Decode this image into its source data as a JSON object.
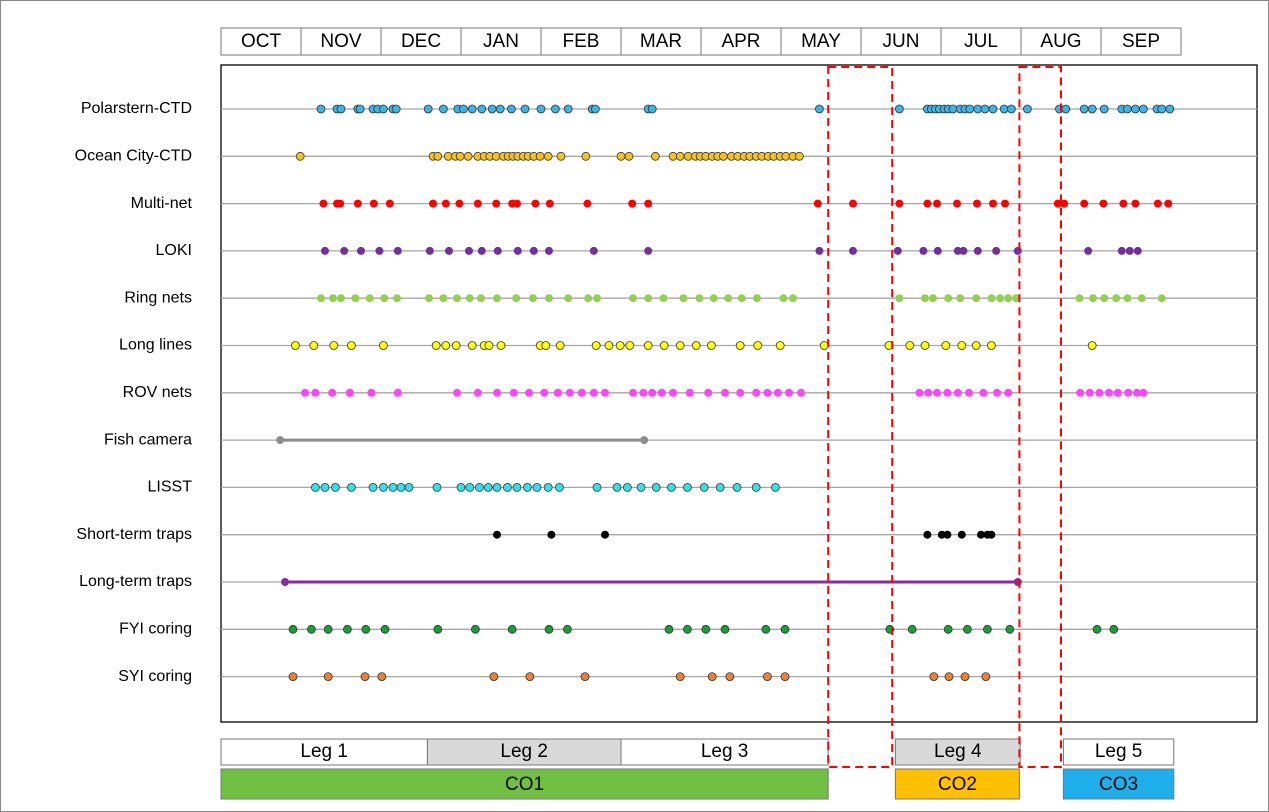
{
  "chart_data": {
    "type": "timeline",
    "months": [
      "OCT",
      "NOV",
      "DEC",
      "JAN",
      "FEB",
      "MAR",
      "APR",
      "MAY",
      "JUN",
      "JUL",
      "AUG",
      "SEP"
    ],
    "xlim": [
      0,
      12.95
    ],
    "rows": [
      {
        "name": "Polarstern-CTD",
        "color": "#3ab3e6",
        "x": [
          1.25,
          1.45,
          1.5,
          1.71,
          1.74,
          1.9,
          1.96,
          2.03,
          2.15,
          2.19,
          2.59,
          2.78,
          2.96,
          3.03,
          3.14,
          3.26,
          3.39,
          3.49,
          3.63,
          3.8,
          4,
          4.18,
          4.34,
          4.64,
          4.68,
          5.34,
          5.39,
          7.48,
          8.48,
          8.83,
          8.88,
          8.93,
          8.98,
          9.04,
          9.09,
          9.15,
          9.24,
          9.3,
          9.36,
          9.46,
          9.55,
          9.65,
          9.79,
          9.88,
          10.08,
          10.48,
          10.56,
          10.79,
          10.89,
          11.04,
          11.26,
          11.33,
          11.43,
          11.53,
          11.7,
          11.76,
          11.86
        ]
      },
      {
        "name": "Ocean City-CTD",
        "color": "#f5c21b",
        "x": [
          0.99,
          2.65,
          2.71,
          2.84,
          2.93,
          2.99,
          3.09,
          3.21,
          3.29,
          3.36,
          3.44,
          3.53,
          3.59,
          3.65,
          3.71,
          3.78,
          3.84,
          3.91,
          3.99,
          4.09,
          4.25,
          4.56,
          5,
          5.1,
          5.43,
          5.65,
          5.74,
          5.84,
          5.93,
          5.99,
          6.06,
          6.14,
          6.21,
          6.28,
          6.38,
          6.46,
          6.54,
          6.61,
          6.69,
          6.76,
          6.84,
          6.91,
          6.99,
          7.06,
          7.15,
          7.23
        ]
      },
      {
        "name": "Multi-net",
        "color": "#ff0000",
        "x": [
          1.28,
          1.45,
          1.49,
          1.71,
          1.91,
          2.11,
          2.65,
          2.81,
          2.98,
          3.21,
          3.44,
          3.64,
          3.7,
          3.93,
          4.11,
          4.58,
          5.14,
          5.34,
          7.46,
          7.9,
          8.48,
          8.83,
          8.95,
          9.2,
          9.45,
          9.65,
          9.8,
          10.46,
          10.54,
          10.79,
          11.03,
          11.28,
          11.43,
          11.71,
          11.84
        ]
      },
      {
        "name": "LOKI",
        "color": "#7030a0",
        "x": [
          1.3,
          1.54,
          1.75,
          1.98,
          2.21,
          2.61,
          2.85,
          3.1,
          3.26,
          3.46,
          3.71,
          3.91,
          4.1,
          4.66,
          5.34,
          7.48,
          7.9,
          8.46,
          8.78,
          8.96,
          9.21,
          9.28,
          9.46,
          9.69,
          9.96,
          10.84,
          11.26,
          11.36,
          11.46
        ]
      },
      {
        "name": "Ring nets",
        "color": "#92d050",
        "x": [
          1.25,
          1.4,
          1.5,
          1.68,
          1.86,
          2.04,
          2.2,
          2.6,
          2.78,
          2.95,
          3.11,
          3.25,
          3.45,
          3.69,
          3.9,
          4.1,
          4.34,
          4.59,
          4.7,
          5.15,
          5.34,
          5.53,
          5.78,
          5.98,
          6.16,
          6.34,
          6.51,
          6.7,
          7.03,
          7.15,
          8.48,
          8.8,
          8.9,
          9.09,
          9.24,
          9.44,
          9.63,
          9.74,
          9.84,
          9.94,
          10.73,
          10.9,
          11.04,
          11.19,
          11.33,
          11.51,
          11.76
        ]
      },
      {
        "name": "Long lines",
        "color": "#ffff00",
        "x": [
          0.93,
          1.16,
          1.41,
          1.63,
          2.03,
          2.69,
          2.81,
          2.94,
          3.14,
          3.29,
          3.35,
          3.5,
          3.99,
          4.06,
          4.24,
          4.69,
          4.85,
          4.99,
          5.11,
          5.34,
          5.54,
          5.74,
          5.94,
          6.13,
          6.49,
          6.71,
          6.99,
          7.54,
          8.35,
          8.61,
          8.8,
          9.06,
          9.26,
          9.44,
          9.63,
          10.89
        ]
      },
      {
        "name": "ROV nets",
        "color": "#ff44ff",
        "x": [
          1.05,
          1.18,
          1.39,
          1.61,
          1.88,
          2.21,
          2.95,
          3.21,
          3.45,
          3.66,
          3.85,
          4.04,
          4.21,
          4.36,
          4.51,
          4.66,
          4.8,
          5.15,
          5.28,
          5.39,
          5.51,
          5.65,
          5.86,
          6.09,
          6.3,
          6.49,
          6.69,
          6.83,
          6.96,
          7.1,
          7.25,
          8.73,
          8.84,
          8.95,
          9.08,
          9.21,
          9.35,
          9.53,
          9.7,
          9.84,
          10.74,
          10.86,
          10.98,
          11.1,
          11.21,
          11.34,
          11.45,
          11.53
        ]
      },
      {
        "name": "Fish camera",
        "color": "#8c8c8c",
        "range": [
          0.74,
          5.29
        ]
      },
      {
        "name": "LISST",
        "color": "#33e0e8",
        "x": [
          1.18,
          1.3,
          1.43,
          1.63,
          1.9,
          2.03,
          2.15,
          2.25,
          2.35,
          2.7,
          3,
          3.11,
          3.23,
          3.34,
          3.45,
          3.58,
          3.7,
          3.83,
          3.95,
          4.09,
          4.23,
          4.7,
          4.95,
          5.08,
          5.25,
          5.44,
          5.63,
          5.83,
          6.04,
          6.24,
          6.45,
          6.69,
          6.93
        ]
      },
      {
        "name": "Short-term traps",
        "color": "#000000",
        "x": [
          3.45,
          4.13,
          4.8,
          8.83,
          9.01,
          9.08,
          9.26,
          9.5,
          9.58,
          9.63
        ]
      },
      {
        "name": "Long-term traps",
        "color": "#8b2a9e",
        "range": [
          0.8,
          9.96
        ]
      },
      {
        "name": "FYI coring",
        "color": "#1a9c3c",
        "x": [
          0.9,
          1.13,
          1.34,
          1.58,
          1.81,
          2.05,
          2.71,
          3.18,
          3.64,
          4.1,
          4.33,
          5.6,
          5.83,
          6.06,
          6.3,
          6.81,
          7.05,
          8.36,
          8.64,
          9.09,
          9.33,
          9.58,
          9.86,
          10.95,
          11.16
        ]
      },
      {
        "name": "SYI coring",
        "color": "#e8823a",
        "x": [
          0.9,
          1.34,
          1.8,
          2.01,
          3.41,
          3.86,
          4.55,
          5.74,
          6.14,
          6.36,
          6.83,
          7.05,
          8.91,
          9.1,
          9.3,
          9.56
        ]
      }
    ],
    "legs": [
      {
        "name": "Leg 1",
        "start": 0,
        "end": 2.58,
        "color": "#ffffff"
      },
      {
        "name": "Leg 2",
        "start": 2.58,
        "end": 5,
        "color": "#d9d9d9"
      },
      {
        "name": "Leg 3",
        "start": 5,
        "end": 7.59,
        "color": "#ffffff"
      },
      {
        "name": "Leg 4",
        "start": 8.43,
        "end": 9.99,
        "color": "#d9d9d9"
      },
      {
        "name": "Leg 5",
        "start": 10.53,
        "end": 11.91,
        "color": "#ffffff"
      }
    ],
    "periods": [
      {
        "name": "CO1",
        "start": 0,
        "end": 7.59,
        "color": "#70c044"
      },
      {
        "name": "CO2",
        "start": 8.43,
        "end": 9.98,
        "color": "#ffc000"
      },
      {
        "name": "CO3",
        "start": 10.53,
        "end": 11.91,
        "color": "#1fb0ec"
      }
    ],
    "highlight_spans": [
      [
        7.59,
        8.39
      ],
      [
        9.98,
        10.5
      ]
    ]
  }
}
